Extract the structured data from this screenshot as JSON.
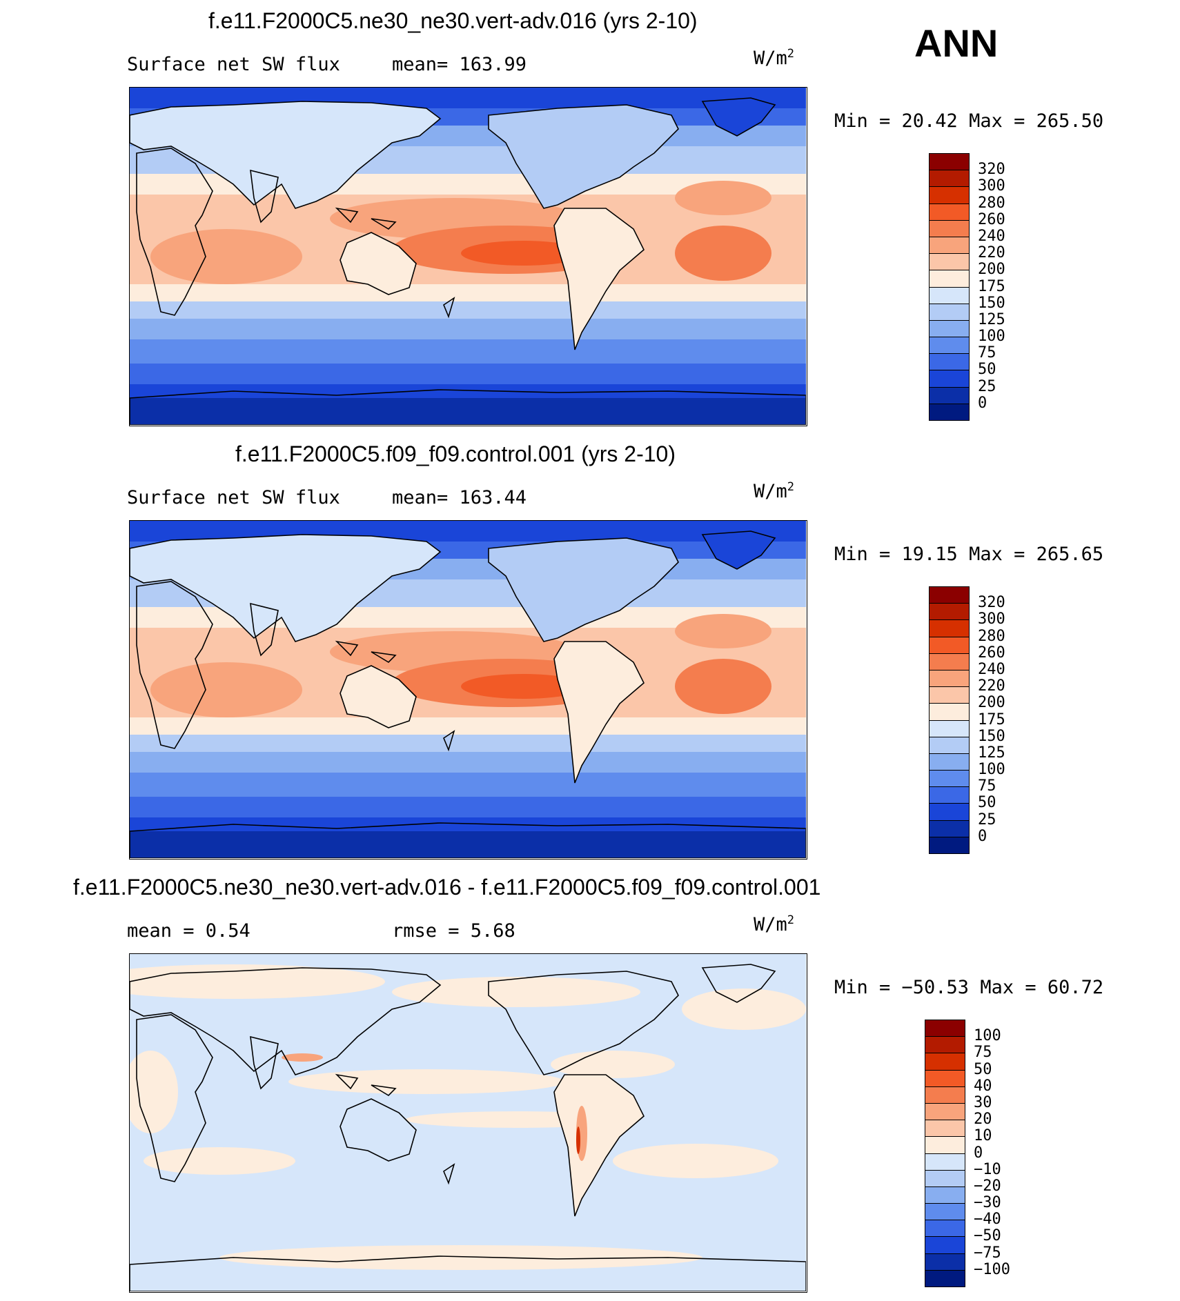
{
  "season": "ANN",
  "panels": [
    {
      "title": "f.e11.F2000C5.ne30_ne30.vert-adv.016 (yrs 2-10)",
      "left_label": "Surface net SW flux",
      "mid_label": "mean= 163.99",
      "units_base": "W/m",
      "units_exp": "2",
      "minmax": "Min =  20.42 Max = 265.50",
      "map_kind": "abs",
      "colorbar": {
        "labels": [
          "320",
          "300",
          "280",
          "260",
          "240",
          "220",
          "200",
          "175",
          "150",
          "125",
          "100",
          "75",
          "50",
          "25",
          "0"
        ],
        "colors": [
          "#8b0000",
          "#b31b00",
          "#d63000",
          "#f25a26",
          "#f47d4e",
          "#f8a47c",
          "#fbc6a9",
          "#fdeddd",
          "#d6e6fa",
          "#b3ccf5",
          "#88aef0",
          "#5f8ced",
          "#3b68e6",
          "#1a45d8",
          "#0b2fa8",
          "#001a80"
        ]
      }
    },
    {
      "title": "f.e11.F2000C5.f09_f09.control.001 (yrs 2-10)",
      "left_label": "Surface net SW flux",
      "mid_label": "mean= 163.44",
      "units_base": "W/m",
      "units_exp": "2",
      "minmax": "Min =  19.15 Max = 265.65",
      "map_kind": "abs",
      "colorbar": {
        "labels": [
          "320",
          "300",
          "280",
          "260",
          "240",
          "220",
          "200",
          "175",
          "150",
          "125",
          "100",
          "75",
          "50",
          "25",
          "0"
        ],
        "colors": [
          "#8b0000",
          "#b31b00",
          "#d63000",
          "#f25a26",
          "#f47d4e",
          "#f8a47c",
          "#fbc6a9",
          "#fdeddd",
          "#d6e6fa",
          "#b3ccf5",
          "#88aef0",
          "#5f8ced",
          "#3b68e6",
          "#1a45d8",
          "#0b2fa8",
          "#001a80"
        ]
      }
    },
    {
      "title": "f.e11.F2000C5.ne30_ne30.vert-adv.016 - f.e11.F2000C5.f09_f09.control.001",
      "left_label": "mean =    0.54",
      "mid_label": "rmse =    5.68",
      "units_base": "W/m",
      "units_exp": "2",
      "minmax": "Min = −50.53 Max =  60.72",
      "map_kind": "diff",
      "colorbar": {
        "labels": [
          "100",
          "75",
          "50",
          "40",
          "30",
          "20",
          "10",
          "0",
          "−10",
          "−20",
          "−30",
          "−40",
          "−50",
          "−75",
          "−100"
        ],
        "colors": [
          "#8b0000",
          "#b31b00",
          "#d63000",
          "#f25a26",
          "#f47d4e",
          "#f8a47c",
          "#fbc6a9",
          "#fdeddd",
          "#d6e6fa",
          "#b3ccf5",
          "#88aef0",
          "#5f8ced",
          "#3b68e6",
          "#1a45d8",
          "#0b2fa8",
          "#001a80"
        ]
      }
    }
  ]
}
